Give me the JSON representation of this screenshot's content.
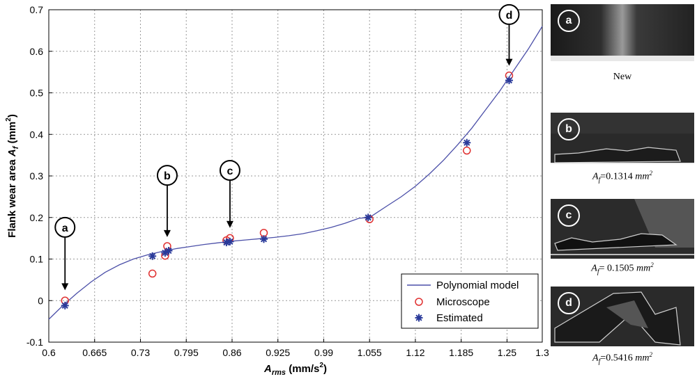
{
  "chart_data": {
    "type": "scatter",
    "xlabel": {
      "main": "A",
      "sub": "rms",
      "unit": " (mm/s",
      "sup": "2",
      "close": ")"
    },
    "ylabel": {
      "main": "Flank wear area ",
      "var": "A",
      "sub": "f",
      "unit": " (mm",
      "sup": "2",
      "close": ")"
    },
    "xlim": [
      0.6,
      1.3
    ],
    "ylim": [
      -0.1,
      0.7
    ],
    "xticks": [
      "0.6",
      "0.665",
      "0.73",
      "0.795",
      "0.86",
      "0.925",
      "0.99",
      "1.055",
      "1.12",
      "1.185",
      "1.25",
      "1.3"
    ],
    "xtick_values": [
      0.6,
      0.665,
      0.73,
      0.795,
      0.86,
      0.925,
      0.99,
      1.055,
      1.12,
      1.185,
      1.25,
      1.3
    ],
    "yticks": [
      "-0.1",
      "0",
      "0.1",
      "0.2",
      "0.3",
      "0.4",
      "0.5",
      "0.6",
      "0.7"
    ],
    "ytick_values": [
      -0.1,
      0,
      0.1,
      0.2,
      0.3,
      0.4,
      0.5,
      0.6,
      0.7
    ],
    "grid": true,
    "legend_position": "bottom-right",
    "series": [
      {
        "name": "Polynomial model",
        "kind": "line",
        "color": "#4b4fa8",
        "x": [
          0.6,
          0.62,
          0.64,
          0.66,
          0.68,
          0.7,
          0.72,
          0.74,
          0.76,
          0.78,
          0.8,
          0.82,
          0.84,
          0.86,
          0.88,
          0.9,
          0.92,
          0.94,
          0.96,
          0.98,
          1.0,
          1.02,
          1.04,
          1.055,
          1.08,
          1.1,
          1.12,
          1.14,
          1.16,
          1.18,
          1.2,
          1.22,
          1.24,
          1.26,
          1.28,
          1.3
        ],
        "y": [
          -0.045,
          -0.012,
          0.018,
          0.045,
          0.068,
          0.086,
          0.1,
          0.11,
          0.118,
          0.125,
          0.13,
          0.135,
          0.139,
          0.143,
          0.146,
          0.149,
          0.152,
          0.156,
          0.161,
          0.168,
          0.176,
          0.186,
          0.198,
          0.2,
          0.228,
          0.25,
          0.275,
          0.305,
          0.338,
          0.375,
          0.415,
          0.46,
          0.505,
          0.555,
          0.605,
          0.66
        ]
      },
      {
        "name": "Microscope",
        "kind": "circle",
        "color": "#e03030",
        "x": [
          0.623,
          0.747,
          0.765,
          0.768,
          0.852,
          0.857,
          0.905,
          1.055,
          1.193,
          1.253
        ],
        "y": [
          0.0,
          0.065,
          0.108,
          0.131,
          0.145,
          0.1505,
          0.163,
          0.196,
          0.361,
          0.5416
        ]
      },
      {
        "name": "Estimated",
        "kind": "star",
        "color": "#2a3a9a",
        "x": [
          0.623,
          0.747,
          0.765,
          0.77,
          0.852,
          0.857,
          0.905,
          1.053,
          1.193,
          1.253
        ],
        "y": [
          -0.012,
          0.107,
          0.115,
          0.12,
          0.14,
          0.142,
          0.148,
          0.2,
          0.38,
          0.53
        ]
      }
    ],
    "annotations": [
      {
        "label": "a",
        "x": 0.623,
        "y_top": 0.153,
        "y_tip": 0.025
      },
      {
        "label": "b",
        "x": 0.768,
        "y_top": 0.278,
        "y_tip": 0.153
      },
      {
        "label": "c",
        "x": 0.857,
        "y_top": 0.29,
        "y_tip": 0.175
      },
      {
        "label": "d",
        "x": 1.253,
        "y_top": 0.665,
        "y_tip": 0.565
      }
    ]
  },
  "panels": [
    {
      "label": "a",
      "caption": "New",
      "area": null
    },
    {
      "label": "b",
      "caption": "",
      "area": "=0.1314 ",
      "unit": "mm",
      "unit_sup": "2"
    },
    {
      "label": "c",
      "caption": "",
      "area": "= 0.1505 ",
      "unit": "mm",
      "unit_sup": "2"
    },
    {
      "label": "d",
      "caption": "",
      "area": "=0.5416 ",
      "unit": "mm",
      "unit_sup": "2"
    }
  ],
  "caption_var": "A",
  "caption_sub": "f"
}
